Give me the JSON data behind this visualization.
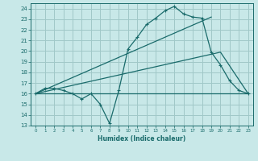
{
  "xlabel": "Humidex (Indice chaleur)",
  "bg_color": "#c8e8e8",
  "grid_color": "#a0c8c8",
  "line_color": "#1a6b6b",
  "xlim": [
    -0.5,
    23.5
  ],
  "ylim": [
    13,
    24.5
  ],
  "xticks": [
    0,
    1,
    2,
    3,
    4,
    5,
    6,
    7,
    8,
    9,
    10,
    11,
    12,
    13,
    14,
    15,
    16,
    17,
    18,
    19,
    20,
    21,
    22,
    23
  ],
  "yticks": [
    13,
    14,
    15,
    16,
    17,
    18,
    19,
    20,
    21,
    22,
    23,
    24
  ],
  "line1_x": [
    0,
    1,
    2,
    3,
    4,
    5,
    6,
    7,
    8,
    9,
    10,
    11,
    12,
    13,
    14,
    15,
    16,
    17,
    18,
    19,
    20,
    21,
    22,
    23
  ],
  "line1_y": [
    16,
    16.5,
    16.5,
    16.3,
    16.0,
    15.5,
    16.0,
    15.0,
    13.2,
    16.3,
    20.2,
    21.3,
    22.5,
    23.1,
    23.8,
    24.2,
    23.5,
    23.2,
    23.1,
    19.9,
    18.7,
    17.2,
    16.3,
    16.0
  ],
  "line2_x": [
    0,
    19
  ],
  "line2_y": [
    16,
    23.2
  ],
  "line3_x": [
    0,
    20,
    23
  ],
  "line3_y": [
    16,
    19.9,
    16.0
  ],
  "line4_x": [
    0,
    23
  ],
  "line4_y": [
    16,
    16
  ]
}
